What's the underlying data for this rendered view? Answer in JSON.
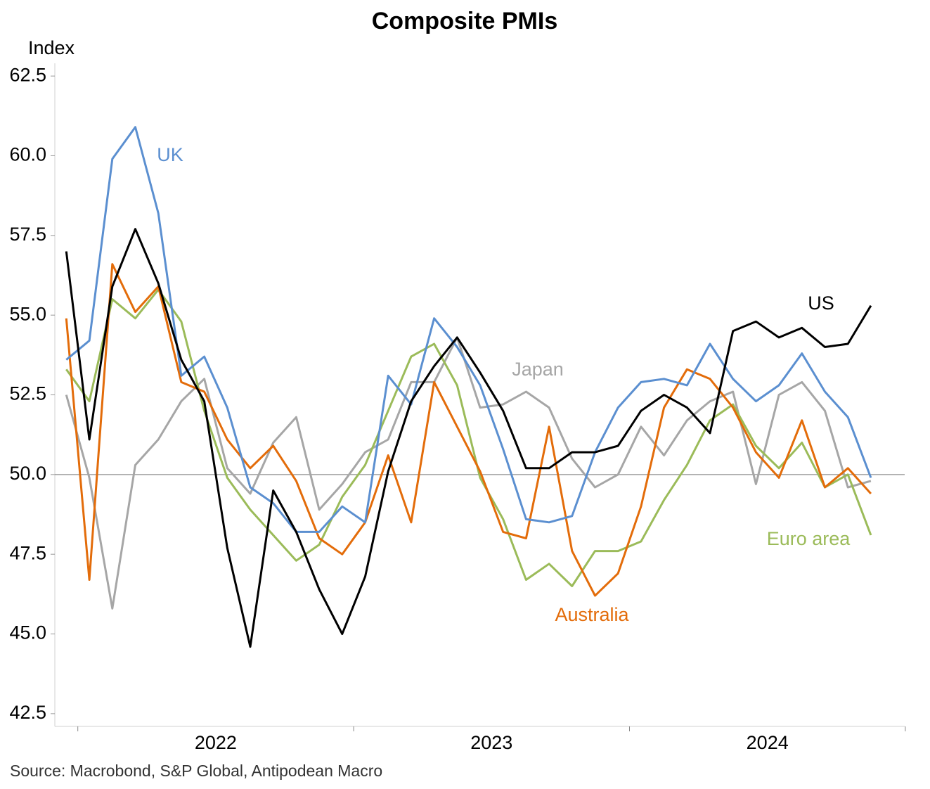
{
  "chart_data": {
    "type": "line",
    "title": "Composite PMIs",
    "y_label": "Index",
    "source": "Source: Macrobond, S&P Global, Antipodean Macro",
    "categories": [
      null,
      null,
      null,
      null,
      null,
      null,
      null,
      "2022",
      null,
      null,
      null,
      null,
      null,
      null,
      null,
      null,
      null,
      null,
      null,
      "2023",
      null,
      null,
      null,
      null,
      null,
      null,
      null,
      null,
      null,
      null,
      null,
      "2024",
      null,
      null,
      null,
      null
    ],
    "ylim": [
      42.1,
      62.9
    ],
    "yticks": [
      {
        "value": 42.5,
        "label": "42.5"
      },
      {
        "value": 45,
        "label": "45.0"
      },
      {
        "value": 47.5,
        "label": "47.5"
      },
      {
        "value": 50,
        "label": "50.0"
      },
      {
        "value": 52.5,
        "label": "52.5"
      },
      {
        "value": 55,
        "label": "55.0"
      },
      {
        "value": 57.5,
        "label": "57.5"
      },
      {
        "value": 60,
        "label": "60.0"
      },
      {
        "value": 62.5,
        "label": "62.5"
      }
    ],
    "reference_line": 50,
    "series": [
      {
        "name": "Japan",
        "color": "#a6a6a6",
        "values": [
          52.5,
          49.9,
          45.8,
          50.3,
          51.1,
          52.3,
          53.0,
          50.2,
          49.4,
          51.0,
          51.8,
          48.9,
          49.7,
          50.7,
          51.1,
          52.9,
          52.9,
          54.3,
          52.1,
          52.2,
          52.6,
          52.1,
          50.5,
          49.6,
          50.0,
          51.5,
          50.6,
          51.7,
          52.3,
          52.6,
          49.7,
          52.5,
          52.9,
          52.0,
          49.6,
          49.8
        ]
      },
      {
        "name": "Euro area",
        "color": "#9bbb59",
        "values": [
          53.3,
          52.3,
          55.5,
          54.9,
          55.8,
          54.8,
          52.0,
          49.9,
          48.9,
          48.1,
          47.3,
          47.8,
          49.3,
          50.3,
          52.0,
          53.7,
          54.1,
          52.8,
          49.9,
          48.6,
          46.7,
          47.2,
          46.5,
          47.6,
          47.6,
          47.9,
          49.2,
          50.3,
          51.7,
          52.2,
          50.9,
          50.2,
          51.0,
          49.6,
          50.0,
          48.1
        ]
      },
      {
        "name": "Australia",
        "color": "#e36c0a",
        "values": [
          54.9,
          46.7,
          56.6,
          55.1,
          55.9,
          52.9,
          52.6,
          51.1,
          50.2,
          50.9,
          49.8,
          48.0,
          47.5,
          48.5,
          50.6,
          48.5,
          52.9,
          51.5,
          50.1,
          48.2,
          48.0,
          51.5,
          47.6,
          46.2,
          46.9,
          49.0,
          52.1,
          53.3,
          53.0,
          52.1,
          50.7,
          49.9,
          51.7,
          49.6,
          50.2,
          49.4
        ]
      },
      {
        "name": "UK",
        "color": "#5b8fd0",
        "values": [
          53.6,
          54.2,
          59.9,
          60.9,
          58.2,
          53.1,
          53.7,
          52.1,
          49.6,
          49.1,
          48.2,
          48.2,
          49.0,
          48.5,
          53.1,
          52.2,
          54.9,
          54.0,
          52.8,
          50.8,
          48.6,
          48.5,
          48.7,
          50.7,
          52.1,
          52.9,
          53.0,
          52.8,
          54.1,
          53.0,
          52.3,
          52.8,
          53.8,
          52.6,
          51.8,
          49.9
        ]
      },
      {
        "name": "US",
        "color": "#000000",
        "values": [
          57.0,
          51.1,
          55.9,
          57.7,
          56.0,
          53.6,
          52.3,
          47.7,
          44.6,
          49.5,
          48.2,
          46.4,
          45.0,
          46.8,
          50.1,
          52.3,
          53.4,
          54.3,
          53.2,
          52.0,
          50.2,
          50.2,
          50.7,
          50.7,
          50.9,
          52.0,
          52.5,
          52.1,
          51.3,
          54.5,
          54.8,
          54.3,
          54.6,
          54.0,
          54.1,
          55.3
        ]
      }
    ]
  }
}
